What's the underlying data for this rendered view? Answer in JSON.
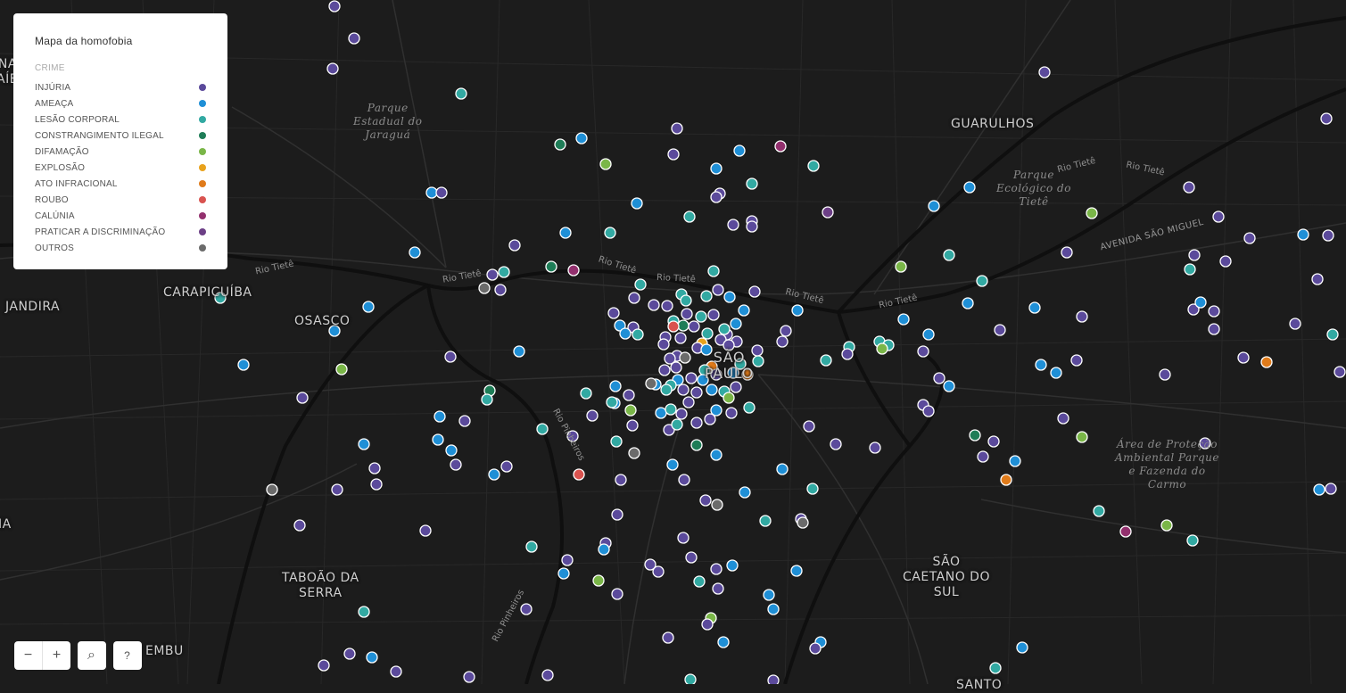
{
  "legend": {
    "title": "Mapa da homofobia",
    "category_label": "CRIME",
    "items": [
      {
        "label": "INJÚRIA",
        "color": "#5b4a9b"
      },
      {
        "label": "AMEAÇA",
        "color": "#1f8fd6"
      },
      {
        "label": "LESÃO CORPORAL",
        "color": "#32a9a2"
      },
      {
        "label": "CONSTRANGIMENTO ILEGAL",
        "color": "#1e7d57"
      },
      {
        "label": "DIFAMAÇÃO",
        "color": "#7ab648"
      },
      {
        "label": "EXPLOSÃO",
        "color": "#e8a21c"
      },
      {
        "label": "ATO INFRACIONAL",
        "color": "#e07b1a"
      },
      {
        "label": "ROUBO",
        "color": "#d9534f"
      },
      {
        "label": "CALÚNIA",
        "color": "#93306e"
      },
      {
        "label": "PRATICAR A DISCRIMINAÇÃO",
        "color": "#6c3f86"
      },
      {
        "label": "OUTROS",
        "color": "#6b6b6b"
      }
    ]
  },
  "map_labels": {
    "guarulhos": "GUARULHOS",
    "carapicuiba": "CARAPICUÍBA",
    "jandira": "JANDIRA",
    "osasco": "OSASCO",
    "sao_paulo": "SÃO\nPAULO",
    "taboao": "TABOÃO DA\nSERRA",
    "sao_caetano": "SÃO\nCAETANO DO\nSUL",
    "embu": "EMBU",
    "santo": "SANTO",
    "edge_top_left": "NA\nAÍB",
    "edge_left": "IA"
  },
  "park_labels": {
    "jaragua": "Parque\nEstadual do\nJaraguá",
    "tiete": "Parque\nEcológico do\nTietê",
    "carmo": "Área de Proteção\nAmbiental Parque\ne Fazenda do\nCarmo"
  },
  "river_labels": {
    "tiete": "Rio Tietê",
    "pinheiros": "Rio Pinheiros"
  },
  "road_labels": {
    "sao_miguel": "AVENIDA SÃO MIGUEL"
  },
  "controls": {
    "zoom_out": "−",
    "zoom_in": "+",
    "search": "⌕",
    "help": "?"
  },
  "points": [
    [
      "i",
      375,
      7
    ],
    [
      "i",
      397,
      43
    ],
    [
      "i",
      373,
      77
    ],
    [
      "l",
      517,
      105
    ],
    [
      "i",
      1171,
      81
    ],
    [
      "i",
      1487,
      133
    ],
    [
      "i",
      759,
      144
    ],
    [
      "a",
      652,
      155
    ],
    [
      "c",
      628,
      162
    ],
    [
      "a",
      829,
      169
    ],
    [
      "i",
      755,
      173
    ],
    [
      "k",
      875,
      164
    ],
    [
      "d",
      679,
      184
    ],
    [
      "a",
      803,
      189
    ],
    [
      "l",
      912,
      186
    ],
    [
      "l",
      843,
      206
    ],
    [
      "a",
      484,
      216
    ],
    [
      "i",
      495,
      216
    ],
    [
      "i",
      807,
      217
    ],
    [
      "i",
      803,
      221
    ],
    [
      "a",
      1087,
      210
    ],
    [
      "i",
      1333,
      210
    ],
    [
      "a",
      714,
      228
    ],
    [
      "l",
      773,
      243
    ],
    [
      "p",
      928,
      238
    ],
    [
      "a",
      1047,
      231
    ],
    [
      "d",
      1224,
      239
    ],
    [
      "i",
      822,
      252
    ],
    [
      "i",
      843,
      248
    ],
    [
      "i",
      843,
      254
    ],
    [
      "i",
      1366,
      243
    ],
    [
      "a",
      634,
      261
    ],
    [
      "l",
      684,
      261
    ],
    [
      "i",
      1401,
      267
    ],
    [
      "a",
      1461,
      263
    ],
    [
      "i",
      1489,
      264
    ],
    [
      "i",
      577,
      275
    ],
    [
      "a",
      465,
      283
    ],
    [
      "i",
      1196,
      283
    ],
    [
      "l",
      1064,
      286
    ],
    [
      "i",
      1339,
      286
    ],
    [
      "i",
      1374,
      293
    ],
    [
      "c",
      618,
      299
    ],
    [
      "k",
      643,
      303
    ],
    [
      "l",
      800,
      304
    ],
    [
      "d",
      1010,
      299
    ],
    [
      "l",
      1334,
      302
    ],
    [
      "i",
      552,
      308
    ],
    [
      "l",
      565,
      305
    ],
    [
      "o",
      543,
      323
    ],
    [
      "i",
      561,
      325
    ],
    [
      "l",
      718,
      319
    ],
    [
      "l",
      1101,
      315
    ],
    [
      "i",
      1477,
      313
    ],
    [
      "i",
      711,
      334
    ],
    [
      "l",
      764,
      330
    ],
    [
      "i",
      805,
      325
    ],
    [
      "i",
      846,
      327
    ],
    [
      "l",
      792,
      332
    ],
    [
      "a",
      818,
      333
    ],
    [
      "l",
      769,
      337
    ],
    [
      "i",
      733,
      342
    ],
    [
      "i",
      748,
      343
    ],
    [
      "a",
      834,
      348
    ],
    [
      "i",
      688,
      351
    ],
    [
      "a",
      894,
      348
    ],
    [
      "a",
      1085,
      340
    ],
    [
      "a",
      1160,
      345
    ],
    [
      "i",
      1338,
      347
    ],
    [
      "a",
      1346,
      339
    ],
    [
      "i",
      1361,
      349
    ],
    [
      "a",
      413,
      344
    ],
    [
      "i",
      1213,
      355
    ],
    [
      "a",
      1013,
      358
    ],
    [
      "l",
      247,
      334
    ],
    [
      "i",
      710,
      367
    ],
    [
      "i",
      770,
      352
    ],
    [
      "l",
      786,
      355
    ],
    [
      "i",
      800,
      353
    ],
    [
      "l",
      755,
      360
    ],
    [
      "i",
      778,
      366
    ],
    [
      "c",
      766,
      365
    ],
    [
      "a",
      825,
      363
    ],
    [
      "a",
      695,
      365
    ],
    [
      "i",
      881,
      371
    ],
    [
      "r",
      755,
      366
    ],
    [
      "i",
      815,
      375
    ],
    [
      "i",
      746,
      378
    ],
    [
      "l",
      715,
      375
    ],
    [
      "a",
      701,
      374
    ],
    [
      "i",
      763,
      379
    ],
    [
      "i",
      808,
      381
    ],
    [
      "l",
      793,
      374
    ],
    [
      "l",
      812,
      369
    ],
    [
      "i",
      1121,
      370
    ],
    [
      "i",
      1361,
      369
    ],
    [
      "i",
      1452,
      363
    ],
    [
      "a",
      375,
      371
    ],
    [
      "i",
      826,
      383
    ],
    [
      "e",
      787,
      385
    ],
    [
      "i",
      877,
      383
    ],
    [
      "a",
      1041,
      375
    ],
    [
      "l",
      1494,
      375
    ],
    [
      "l",
      952,
      389
    ],
    [
      "l",
      986,
      383
    ],
    [
      "l",
      996,
      387
    ],
    [
      "d",
      989,
      391
    ],
    [
      "i",
      744,
      386
    ],
    [
      "i",
      782,
      390
    ],
    [
      "i",
      817,
      387
    ],
    [
      "a",
      792,
      392
    ],
    [
      "i",
      849,
      393
    ],
    [
      "a",
      582,
      394
    ],
    [
      "i",
      759,
      399
    ],
    [
      "i",
      751,
      402
    ],
    [
      "o",
      768,
      401
    ],
    [
      "i",
      950,
      397
    ],
    [
      "i",
      1035,
      394
    ],
    [
      "i",
      505,
      400
    ],
    [
      "x",
      1420,
      406
    ],
    [
      "i",
      1394,
      401
    ],
    [
      "i",
      1207,
      404
    ],
    [
      "a",
      273,
      409
    ],
    [
      "d",
      383,
      414
    ],
    [
      "a",
      1167,
      409
    ],
    [
      "a",
      1184,
      418
    ],
    [
      "i",
      1306,
      420
    ],
    [
      "i",
      1502,
      417
    ],
    [
      "l",
      926,
      404
    ],
    [
      "l",
      850,
      405
    ],
    [
      "l",
      830,
      408
    ],
    [
      "x",
      798,
      411
    ],
    [
      "i",
      758,
      412
    ],
    [
      "i",
      745,
      415
    ],
    [
      "l",
      790,
      415
    ],
    [
      "a",
      760,
      426
    ],
    [
      "i",
      775,
      424
    ],
    [
      "a",
      788,
      426
    ],
    [
      "i",
      803,
      420
    ],
    [
      "a",
      822,
      418
    ],
    [
      "x",
      838,
      420
    ],
    [
      "l",
      752,
      432
    ],
    [
      "a",
      735,
      431
    ],
    [
      "o",
      730,
      430
    ],
    [
      "l",
      747,
      437
    ],
    [
      "i",
      766,
      437
    ],
    [
      "i",
      781,
      440
    ],
    [
      "a",
      798,
      437
    ],
    [
      "l",
      812,
      439
    ],
    [
      "i",
      825,
      434
    ],
    [
      "i",
      1053,
      424
    ],
    [
      "a",
      1064,
      433
    ],
    [
      "c",
      549,
      438
    ],
    [
      "l",
      546,
      448
    ],
    [
      "l",
      657,
      441
    ],
    [
      "a",
      690,
      433
    ],
    [
      "i",
      705,
      443
    ],
    [
      "a",
      689,
      452
    ],
    [
      "l",
      686,
      451
    ],
    [
      "d",
      817,
      446
    ],
    [
      "i",
      772,
      451
    ],
    [
      "i",
      339,
      446
    ],
    [
      "i",
      1035,
      454
    ],
    [
      "i",
      1041,
      461
    ],
    [
      "a",
      493,
      467
    ],
    [
      "i",
      521,
      472
    ],
    [
      "i",
      664,
      466
    ],
    [
      "d",
      707,
      460
    ],
    [
      "a",
      741,
      463
    ],
    [
      "l",
      752,
      459
    ],
    [
      "i",
      764,
      464
    ],
    [
      "i",
      781,
      474
    ],
    [
      "i",
      796,
      470
    ],
    [
      "a",
      803,
      460
    ],
    [
      "l",
      840,
      457
    ],
    [
      "i",
      820,
      463
    ],
    [
      "i",
      1192,
      469
    ],
    [
      "i",
      709,
      477
    ],
    [
      "i",
      750,
      482
    ],
    [
      "l",
      759,
      476
    ],
    [
      "i",
      907,
      478
    ],
    [
      "c",
      1093,
      488
    ],
    [
      "i",
      1114,
      495
    ],
    [
      "d",
      1213,
      490
    ],
    [
      "i",
      1351,
      497
    ],
    [
      "l",
      608,
      481
    ],
    [
      "a",
      408,
      498
    ],
    [
      "a",
      491,
      493
    ],
    [
      "i",
      642,
      489
    ],
    [
      "l",
      691,
      495
    ],
    [
      "c",
      781,
      499
    ],
    [
      "i",
      937,
      498
    ],
    [
      "i",
      981,
      502
    ],
    [
      "i",
      1102,
      512
    ],
    [
      "a",
      1138,
      517
    ],
    [
      "a",
      506,
      505
    ],
    [
      "o",
      711,
      508
    ],
    [
      "a",
      803,
      510
    ],
    [
      "i",
      420,
      525
    ],
    [
      "i",
      511,
      521
    ],
    [
      "i",
      568,
      523
    ],
    [
      "r",
      649,
      532
    ],
    [
      "a",
      754,
      521
    ],
    [
      "a",
      877,
      526
    ],
    [
      "a",
      554,
      532
    ],
    [
      "i",
      696,
      538
    ],
    [
      "i",
      767,
      538
    ],
    [
      "x",
      1128,
      538
    ],
    [
      "i",
      422,
      543
    ],
    [
      "a",
      1479,
      549
    ],
    [
      "i",
      1492,
      548
    ],
    [
      "o",
      305,
      549
    ],
    [
      "i",
      378,
      549
    ],
    [
      "i",
      791,
      561
    ],
    [
      "o",
      804,
      566
    ],
    [
      "l",
      911,
      548
    ],
    [
      "a",
      835,
      552
    ],
    [
      "l",
      1232,
      573
    ],
    [
      "i",
      692,
      577
    ],
    [
      "l",
      858,
      584
    ],
    [
      "i",
      898,
      582
    ],
    [
      "o",
      900,
      586
    ],
    [
      "d",
      1308,
      589
    ],
    [
      "i",
      336,
      589
    ],
    [
      "i",
      477,
      595
    ],
    [
      "k",
      1262,
      596
    ],
    [
      "l",
      1337,
      606
    ],
    [
      "l",
      596,
      613
    ],
    [
      "i",
      766,
      603
    ],
    [
      "i",
      679,
      609
    ],
    [
      "a",
      677,
      616
    ],
    [
      "i",
      636,
      628
    ],
    [
      "i",
      775,
      625
    ],
    [
      "i",
      729,
      633
    ],
    [
      "i",
      738,
      641
    ],
    [
      "a",
      821,
      634
    ],
    [
      "i",
      803,
      638
    ],
    [
      "a",
      632,
      643
    ],
    [
      "a",
      893,
      640
    ],
    [
      "d",
      671,
      651
    ],
    [
      "l",
      784,
      652
    ],
    [
      "i",
      805,
      660
    ],
    [
      "a",
      862,
      667
    ],
    [
      "i",
      692,
      666
    ],
    [
      "a",
      867,
      683
    ],
    [
      "l",
      408,
      686
    ],
    [
      "i",
      590,
      683
    ],
    [
      "d",
      797,
      693
    ],
    [
      "i",
      793,
      700
    ],
    [
      "i",
      749,
      715
    ],
    [
      "a",
      811,
      720
    ],
    [
      "a",
      920,
      720
    ],
    [
      "i",
      914,
      727
    ],
    [
      "a",
      1146,
      726
    ],
    [
      "i",
      392,
      733
    ],
    [
      "a",
      417,
      737
    ],
    [
      "i",
      363,
      746
    ],
    [
      "i",
      444,
      753
    ],
    [
      "i",
      526,
      759
    ],
    [
      "i",
      614,
      757
    ],
    [
      "l",
      774,
      762
    ],
    [
      "i",
      867,
      763
    ],
    [
      "l",
      1116,
      749
    ]
  ]
}
